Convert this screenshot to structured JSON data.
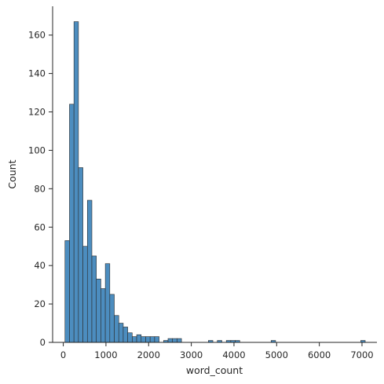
{
  "chart_data": {
    "type": "bar",
    "title": "",
    "xlabel": "word_count",
    "ylabel": "Count",
    "xlim": [
      -250,
      7350
    ],
    "ylim": [
      0,
      175
    ],
    "xticks": [
      0,
      1000,
      2000,
      3000,
      4000,
      5000,
      6000,
      7000
    ],
    "yticks": [
      0,
      20,
      40,
      60,
      80,
      100,
      120,
      140,
      160
    ],
    "grid": false,
    "legend": "none",
    "bar_color": "#4c8dbf",
    "edge_color": "#2b2b2b",
    "bin_width": 105,
    "bins": [
      {
        "x0": 40,
        "count": 53
      },
      {
        "x0": 145,
        "count": 124
      },
      {
        "x0": 250,
        "count": 167
      },
      {
        "x0": 355,
        "count": 91
      },
      {
        "x0": 460,
        "count": 50
      },
      {
        "x0": 565,
        "count": 74
      },
      {
        "x0": 670,
        "count": 45
      },
      {
        "x0": 775,
        "count": 33
      },
      {
        "x0": 880,
        "count": 28
      },
      {
        "x0": 985,
        "count": 41
      },
      {
        "x0": 1090,
        "count": 25
      },
      {
        "x0": 1195,
        "count": 14
      },
      {
        "x0": 1300,
        "count": 10
      },
      {
        "x0": 1405,
        "count": 8
      },
      {
        "x0": 1510,
        "count": 5
      },
      {
        "x0": 1615,
        "count": 3
      },
      {
        "x0": 1720,
        "count": 4
      },
      {
        "x0": 1825,
        "count": 3
      },
      {
        "x0": 1930,
        "count": 3
      },
      {
        "x0": 2035,
        "count": 3
      },
      {
        "x0": 2140,
        "count": 3
      },
      {
        "x0": 2350,
        "count": 1
      },
      {
        "x0": 2455,
        "count": 2
      },
      {
        "x0": 2560,
        "count": 2
      },
      {
        "x0": 2665,
        "count": 2
      },
      {
        "x0": 3400,
        "count": 1
      },
      {
        "x0": 3610,
        "count": 1
      },
      {
        "x0": 3820,
        "count": 1
      },
      {
        "x0": 3925,
        "count": 1
      },
      {
        "x0": 4030,
        "count": 1
      },
      {
        "x0": 4870,
        "count": 1
      },
      {
        "x0": 6970,
        "count": 1
      }
    ]
  }
}
